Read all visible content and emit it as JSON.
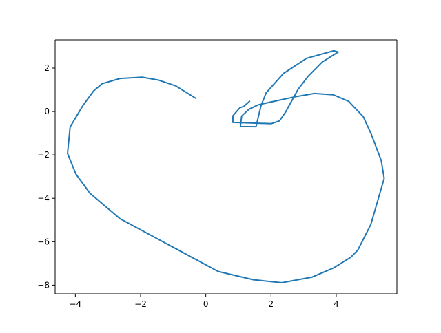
{
  "chart_data": {
    "type": "line",
    "title": "",
    "xlabel": "",
    "ylabel": "",
    "xlim": [
      -4.62,
      5.86
    ],
    "ylim": [
      -8.4,
      3.3
    ],
    "xticks": [
      -4,
      -2,
      0,
      2,
      4
    ],
    "yticks": [
      -8,
      -6,
      -4,
      -2,
      0,
      2
    ],
    "xtick_labels": [
      "−4",
      "−2",
      "0",
      "2",
      "4"
    ],
    "ytick_labels": [
      "−8",
      "−6",
      "−4",
      "−2",
      "0",
      "2"
    ],
    "grid": false,
    "legend": "none",
    "series": [
      {
        "color": "#1f77b4",
        "points": [
          [
            -0.32,
            0.62
          ],
          [
            -0.92,
            1.18
          ],
          [
            -1.46,
            1.45
          ],
          [
            -1.95,
            1.58
          ],
          [
            -2.63,
            1.52
          ],
          [
            -3.18,
            1.28
          ],
          [
            -3.44,
            0.95
          ],
          [
            -3.77,
            0.27
          ],
          [
            -4.16,
            -0.71
          ],
          [
            -4.24,
            -1.93
          ],
          [
            -3.98,
            -2.89
          ],
          [
            -3.55,
            -3.77
          ],
          [
            -2.63,
            -4.94
          ],
          [
            0.38,
            -7.37
          ],
          [
            1.45,
            -7.75
          ],
          [
            2.33,
            -7.89
          ],
          [
            3.26,
            -7.63
          ],
          [
            3.93,
            -7.2
          ],
          [
            4.45,
            -6.71
          ],
          [
            4.66,
            -6.39
          ],
          [
            5.06,
            -5.21
          ],
          [
            5.47,
            -3.08
          ],
          [
            5.38,
            -2.26
          ],
          [
            5.07,
            -1.03
          ],
          [
            4.83,
            -0.24
          ],
          [
            4.38,
            0.47
          ],
          [
            3.91,
            0.77
          ],
          [
            3.33,
            0.83
          ],
          [
            2.71,
            0.67
          ],
          [
            1.61,
            0.31
          ],
          [
            1.32,
            0.1
          ],
          [
            1.1,
            -0.21
          ],
          [
            1.06,
            -0.69
          ],
          [
            1.54,
            -0.7
          ],
          [
            1.69,
            0.25
          ],
          [
            1.85,
            0.86
          ],
          [
            2.38,
            1.75
          ],
          [
            3.09,
            2.45
          ],
          [
            3.93,
            2.8
          ],
          [
            4.06,
            2.74
          ],
          [
            3.57,
            2.28
          ],
          [
            3.14,
            1.63
          ],
          [
            2.83,
            1.02
          ],
          [
            2.44,
            -0.04
          ],
          [
            2.26,
            -0.43
          ],
          [
            2.01,
            -0.56
          ],
          [
            0.83,
            -0.5
          ],
          [
            0.83,
            -0.2
          ],
          [
            1.05,
            0.18
          ],
          [
            1.16,
            0.23
          ],
          [
            1.34,
            0.47
          ]
        ]
      }
    ]
  }
}
